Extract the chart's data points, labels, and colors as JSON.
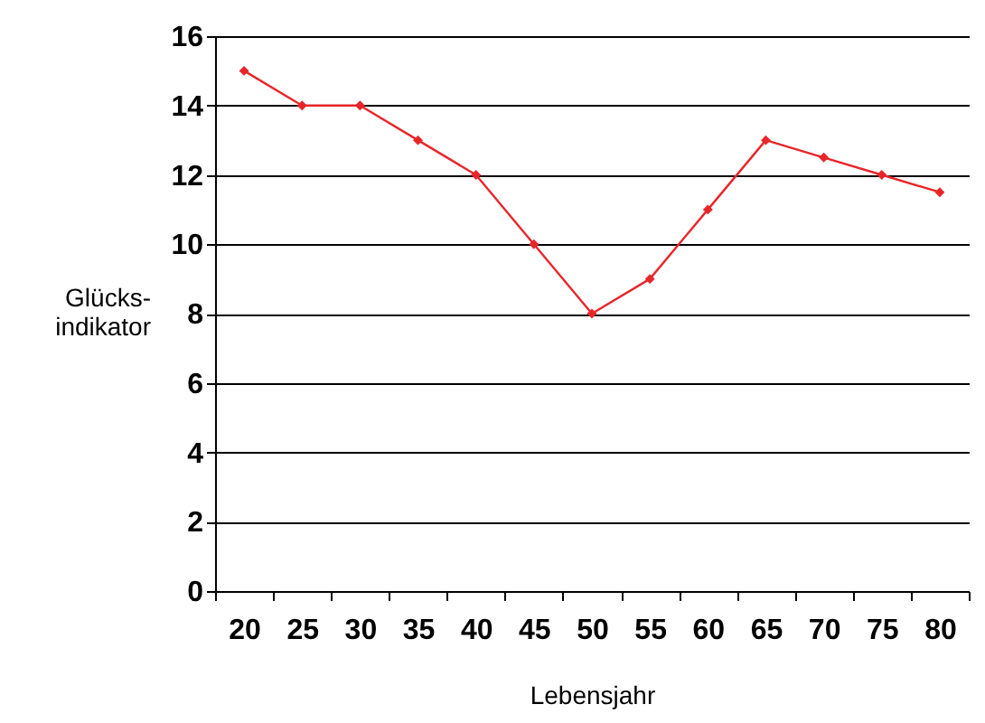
{
  "chart_data": {
    "type": "line",
    "categories": [
      "20",
      "25",
      "30",
      "35",
      "40",
      "45",
      "50",
      "55",
      "60",
      "65",
      "70",
      "75",
      "80"
    ],
    "series": [
      {
        "color": "#e8262a",
        "values": [
          15,
          14,
          14,
          13,
          12,
          10,
          8,
          9,
          11,
          13,
          12.5,
          12,
          11.5
        ]
      }
    ],
    "ylim": [
      0,
      16
    ],
    "yticks": [
      0,
      2,
      4,
      6,
      8,
      10,
      12,
      14,
      16
    ],
    "xlabel": "Lebensjahr",
    "ylabel": "Glücks-\nindikator",
    "grid": "y",
    "marker": "diamond",
    "line_style": "solid"
  }
}
